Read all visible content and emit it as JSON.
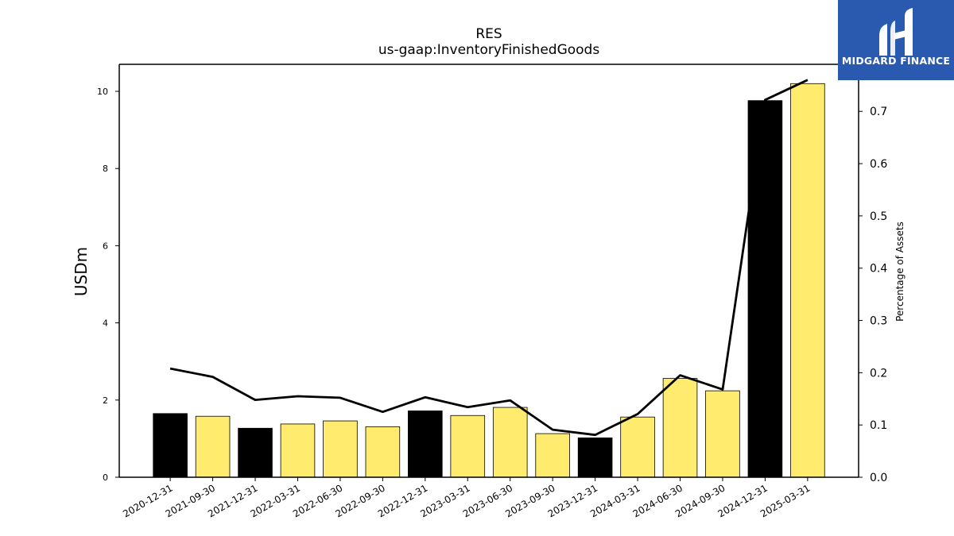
{
  "chart_data": {
    "type": "bar",
    "title": "RES",
    "subtitle": "us-gaap:InventoryFinishedGoods",
    "ylabel": "USDm",
    "y2label": "Percentage of Assets",
    "ylim": [
      0,
      10.7
    ],
    "y2lim": [
      0,
      0.79
    ],
    "yticks": [
      0,
      2,
      4,
      6,
      8,
      10
    ],
    "y2ticks": [
      "0.0",
      "0.1",
      "0.2",
      "0.3",
      "0.4",
      "0.5",
      "0.6",
      "0.7"
    ],
    "categories": [
      "2020-12-31",
      "2021-09-30",
      "2021-12-31",
      "2022-03-31",
      "2022-06-30",
      "2022-09-30",
      "2022-12-31",
      "2023-03-31",
      "2023-06-30",
      "2023-09-30",
      "2023-12-31",
      "2024-03-31",
      "2024-06-30",
      "2024-09-30",
      "2024-12-31",
      "2025-03-31"
    ],
    "series": [
      {
        "type": "bar",
        "axis": "left",
        "values": [
          1.65,
          1.58,
          1.27,
          1.38,
          1.46,
          1.31,
          1.72,
          1.6,
          1.81,
          1.13,
          1.02,
          1.56,
          2.56,
          2.24,
          9.76,
          10.2
        ],
        "colors": [
          "#000000",
          "#ffeb6e",
          "#000000",
          "#ffeb6e",
          "#ffeb6e",
          "#ffeb6e",
          "#000000",
          "#ffeb6e",
          "#ffeb6e",
          "#ffeb6e",
          "#000000",
          "#ffeb6e",
          "#ffeb6e",
          "#ffeb6e",
          "#000000",
          "#ffeb6e"
        ]
      },
      {
        "type": "line",
        "axis": "right",
        "values": [
          0.208,
          0.192,
          0.148,
          0.155,
          0.152,
          0.125,
          0.153,
          0.134,
          0.147,
          0.091,
          0.081,
          0.121,
          0.195,
          0.168,
          0.722,
          0.76
        ],
        "color": "#000000"
      }
    ],
    "grid": false,
    "legend": "none"
  },
  "logo": {
    "text": "MIDGARD FINANCE",
    "background": "#2a5ab0"
  }
}
